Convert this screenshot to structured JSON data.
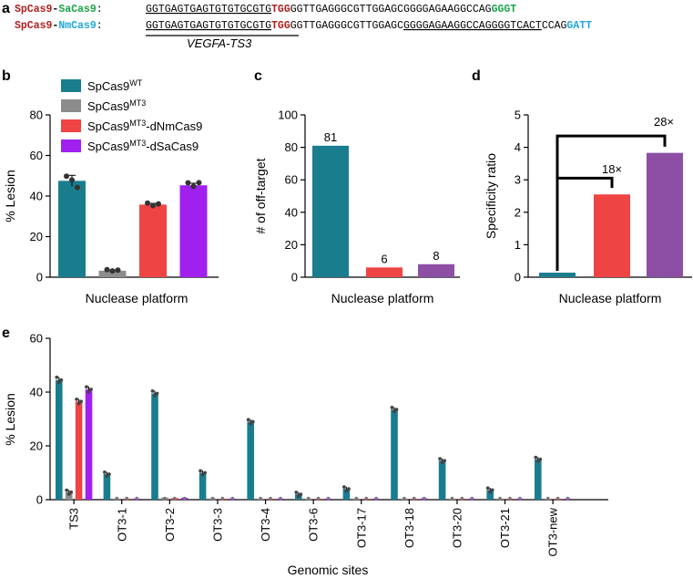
{
  "colors": {
    "teal": "#1a7d8e",
    "gray": "#8c8c8c",
    "red": "#ef4444",
    "purple": "#a020f0",
    "purple_mid": "#8d4fa3",
    "spcas9": "#b01c1c",
    "sacas9": "#1aa34a",
    "nmcas9": "#20a8d8",
    "pam_sa": "#1aa34a",
    "pam_nm": "#20a8d8"
  },
  "panel_a": {
    "label": "a",
    "row1": {
      "name1": "SpCas9",
      "dash": "-",
      "name2": "SaCas9",
      "colon": ":",
      "protospacer": "GGTGAGTGAGTGTGTGCGTG",
      "pam": "TGG",
      "linker": "GGTTGAGGGCGTTGGAGCGGGGAGAAGGCCAG",
      "pam2": "GGGT"
    },
    "row2": {
      "name1": "SpCas9",
      "dash": "-",
      "name2": "NmCas9",
      "colon": ":",
      "protospacer": "GGTGAGTGAGTGTGTGCGTG",
      "pam": "TGG",
      "linker_a": "GGTTGAGGGCGTTGGAGC",
      "linker_b": "GGGGAGAAGGCCAGGGGTCACT",
      "linker_c": "CCAG",
      "pam2": "GATT"
    },
    "target_label": "VEGFA-TS3"
  },
  "chart_data": [
    {
      "panel": "b",
      "type": "bar",
      "categories": [
        "SpCas9WT",
        "SpCas9MT3",
        "SpCas9MT3-dNmCas9",
        "SpCas9MT3-dSaCas9"
      ],
      "values": [
        47.5,
        3.2,
        35.8,
        45.3
      ],
      "points": [
        [
          49.8,
          47.9,
          44.2
        ],
        [
          3.7,
          3.1,
          3.5
        ],
        [
          36.5,
          35.3,
          36.1
        ],
        [
          46.5,
          44.8,
          46.6
        ]
      ],
      "errors": [
        2.7,
        0.3,
        0.6,
        1.0
      ],
      "ylim": [
        0,
        80
      ],
      "yticks": [
        0,
        20,
        40,
        60,
        80
      ],
      "ylabel": "% Lesion",
      "xlabel": "Nuclease platform"
    },
    {
      "panel": "c",
      "type": "bar",
      "categories": [
        "SpCas9WT",
        "SpCas9MT3-dNmCas9",
        "SpCas9MT3-dSaCas9"
      ],
      "values": [
        81,
        6,
        8
      ],
      "data_labels": [
        "81",
        "6",
        "8"
      ],
      "ylim": [
        0,
        100
      ],
      "yticks": [
        0,
        20,
        40,
        60,
        80,
        100
      ],
      "ylabel": "# of off-target",
      "xlabel": "Nuclease platform"
    },
    {
      "panel": "d",
      "type": "bar",
      "categories": [
        "SpCas9WT",
        "SpCas9MT3-dNmCas9",
        "SpCas9MT3-dSaCas9"
      ],
      "values": [
        0.14,
        2.55,
        3.83
      ],
      "ylim": [
        0,
        5
      ],
      "yticks": [
        0,
        1,
        2,
        3,
        4,
        5
      ],
      "ylabel": "Specificity ratio",
      "xlabel": "Nuclease platform",
      "annotations": [
        "18×",
        "28×"
      ]
    },
    {
      "panel": "e",
      "type": "bar",
      "categories": [
        "TS3",
        "OT3-1",
        "OT3-2",
        "OT3-3",
        "OT3-4",
        "OT3-6",
        "OT3-17",
        "OT3-18",
        "OT3-20",
        "OT3-21",
        "OT3-new"
      ],
      "series": [
        {
          "name": "SpCas9WT",
          "values": [
            44.5,
            9.5,
            39.5,
            10,
            29,
            2,
            4,
            33.5,
            14.5,
            3.6,
            15
          ]
        },
        {
          "name": "SpCas9MT3",
          "values": [
            2.8,
            0.3,
            0.8,
            0.5,
            0.3,
            0.3,
            0.3,
            0.3,
            0.3,
            0.3,
            0.3
          ]
        },
        {
          "name": "SpCas9MT3-dNmCas9",
          "values": [
            36.5,
            0.2,
            0.6,
            0.3,
            0.2,
            0.2,
            0.2,
            0.2,
            0.2,
            0.2,
            0.3
          ]
        },
        {
          "name": "SpCas9MT3-dSaCas9",
          "values": [
            41,
            0.2,
            0.7,
            0.4,
            0.2,
            0.3,
            0.2,
            0.5,
            0.3,
            0.2,
            0.3
          ]
        }
      ],
      "ylim": [
        0,
        60
      ],
      "yticks": [
        0,
        20,
        40,
        60
      ],
      "ylabel": "% Lesion",
      "xlabel": "Genomic sites"
    }
  ],
  "legend": [
    {
      "base": "SpCas9",
      "sup": "WT",
      "suffix": ""
    },
    {
      "base": "SpCas9",
      "sup": "MT3",
      "suffix": ""
    },
    {
      "base": "SpCas9",
      "sup": "MT3",
      "suffix": "-dNmCas9"
    },
    {
      "base": "SpCas9",
      "sup": "MT3",
      "suffix": "-dSaCas9"
    }
  ],
  "panel_labels": {
    "b": "b",
    "c": "c",
    "d": "d",
    "e": "e"
  }
}
